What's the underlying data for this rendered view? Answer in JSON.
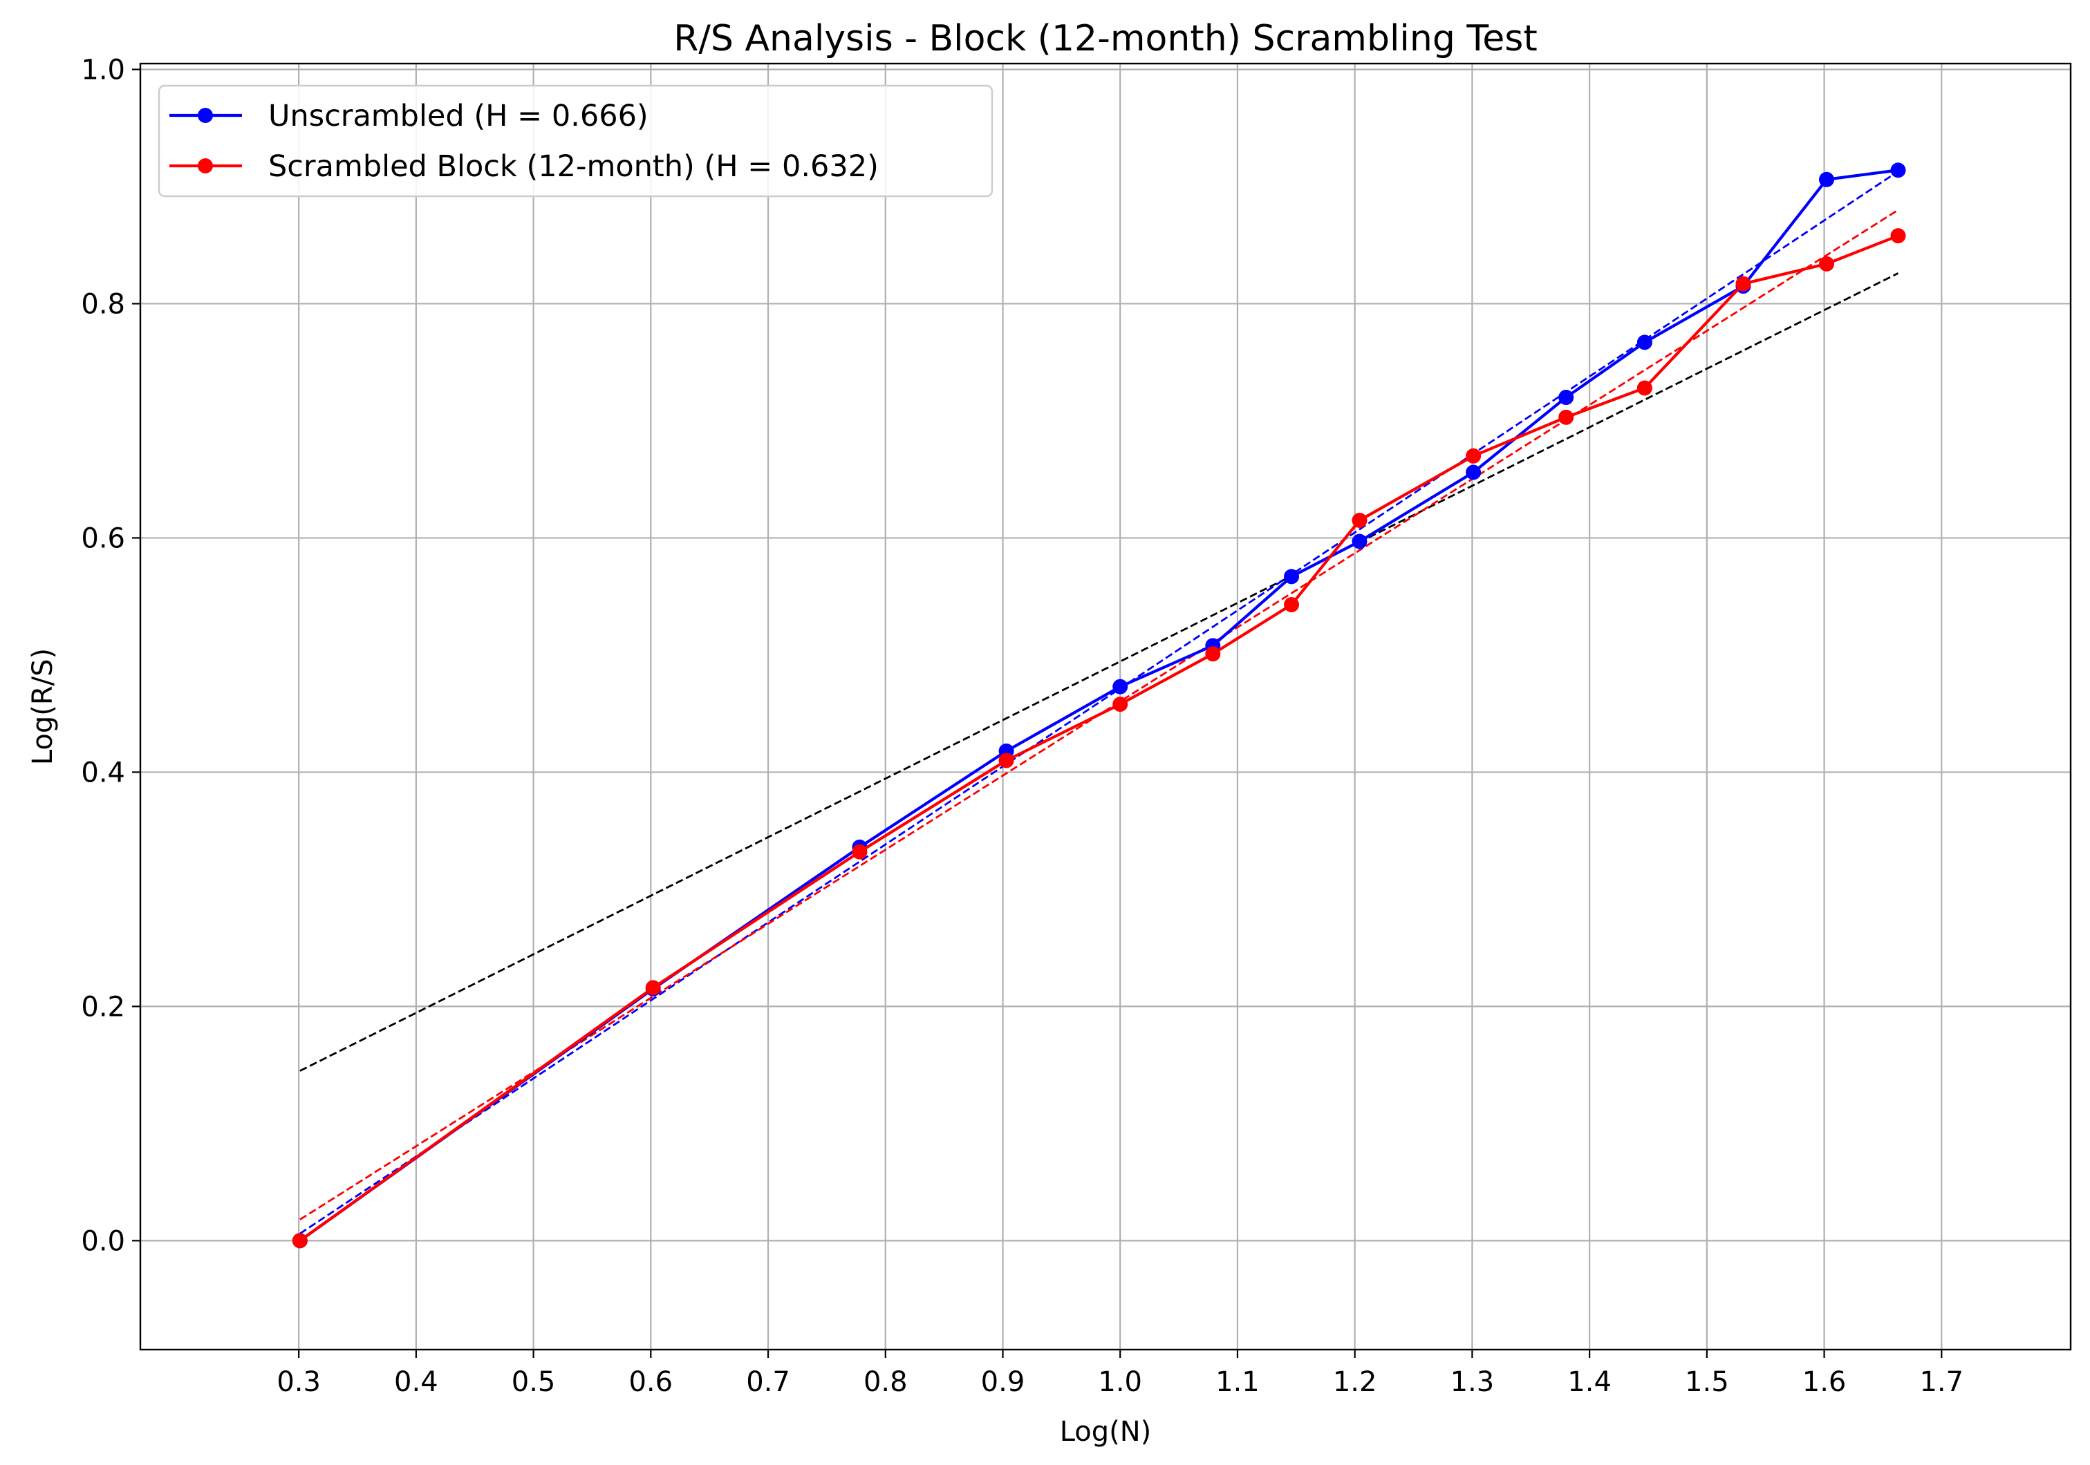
{
  "chart_data": {
    "type": "line",
    "title": "R/S Analysis - Block (12-month) Scrambling Test",
    "xlabel": "Log(N)",
    "ylabel": "Log(R/S)",
    "xlim": [
      0.165,
      1.81
    ],
    "ylim": [
      -0.093,
      1.005
    ],
    "xticks": [
      0.3,
      0.4,
      0.5,
      0.6,
      0.7,
      0.8,
      0.9,
      1.0,
      1.1,
      1.2,
      1.3,
      1.4,
      1.5,
      1.6,
      1.7
    ],
    "xtick_labels": [
      "0.3",
      "0.4",
      "0.5",
      "0.6",
      "0.7",
      "0.8",
      "0.9",
      "1.0",
      "1.1",
      "1.2",
      "1.3",
      "1.4",
      "1.5",
      "1.6",
      "1.7"
    ],
    "yticks": [
      0.0,
      0.2,
      0.4,
      0.6,
      0.8,
      1.0
    ],
    "ytick_labels": [
      "0.0",
      "0.2",
      "0.4",
      "0.6",
      "0.8",
      "1.0"
    ],
    "grid": true,
    "legend_position": "top-left",
    "x": [
      0.301,
      0.602,
      0.778,
      0.903,
      1.0,
      1.079,
      1.146,
      1.204,
      1.301,
      1.38,
      1.447,
      1.531,
      1.602,
      1.663
    ],
    "series": [
      {
        "name": "Unscrambled (H = 0.666)",
        "color": "#0000ff",
        "values": [
          0.0,
          0.215,
          0.336,
          0.418,
          0.473,
          0.508,
          0.567,
          0.597,
          0.656,
          0.72,
          0.767,
          0.815,
          0.906,
          0.914
        ],
        "marker": "circle",
        "fit": {
          "type": "dashed",
          "y_at_start": 0.006,
          "y_at_end": 0.913
        }
      },
      {
        "name": "Scrambled Block (12-month) (H = 0.632)",
        "color": "#ff0000",
        "values": [
          0.0,
          0.216,
          0.332,
          0.41,
          0.458,
          0.501,
          0.543,
          0.615,
          0.67,
          0.703,
          0.728,
          0.817,
          0.834,
          0.858
        ],
        "marker": "circle",
        "fit": {
          "type": "dashed",
          "y_at_start": 0.018,
          "y_at_end": 0.88
        }
      }
    ],
    "reference_line": {
      "color": "#000000",
      "style": "dashed",
      "x": [
        0.301,
        1.663
      ],
      "y": [
        0.145,
        0.826
      ]
    }
  }
}
